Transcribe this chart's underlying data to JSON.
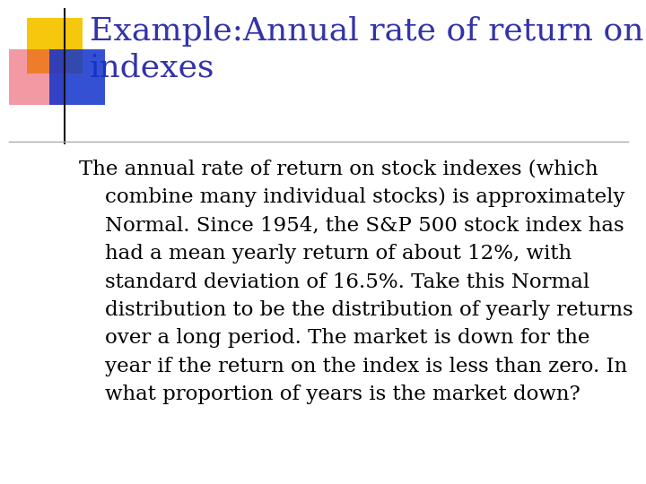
{
  "title_line1": "Example:Annual rate of return on stock",
  "title_line2": "indexes",
  "title_color": "#3333aa",
  "body_lines": [
    "The annual rate of return on stock indexes (which",
    "    combine many individual stocks) is approximately",
    "    Normal. Since 1954, the S&P 500 stock index has",
    "    had a mean yearly return of about 12%, with",
    "    standard deviation of 16.5%. Take this Normal",
    "    distribution to be the distribution of yearly returns",
    "    over a long period. The market is down for the",
    "    year if the return on the index is less than zero. In",
    "    what proportion of years is the market down?"
  ],
  "body_color": "#000000",
  "background_color": "#ffffff",
  "square_yellow": "#f5c400",
  "square_red": "#e8354a",
  "square_blue": "#1133cc",
  "line_color": "#aaaaaa",
  "title_fontsize": 26,
  "body_fontsize": 16.5
}
